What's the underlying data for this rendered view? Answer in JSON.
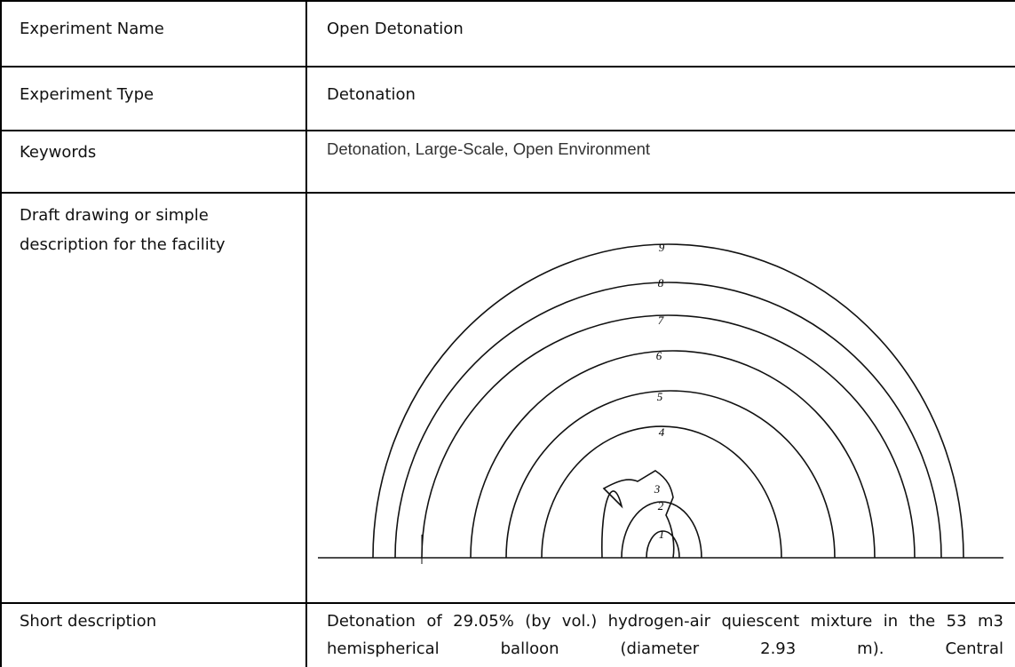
{
  "table": {
    "rows": [
      [
        "Experiment Name",
        "Open Detonation"
      ],
      [
        "Experiment Type",
        "Detonation"
      ],
      [
        "Keywords",
        "Detonation, Large-Scale, Open Environment"
      ],
      [
        "Draft drawing or simple description for the facility"
      ],
      [
        "Short description",
        "Detonation of 29.05% (by vol.) hydrogen-air quiescent mixture in the 53 m3 hemispherical balloon (diameter 2.93 m). Central"
      ]
    ]
  },
  "drawing": {
    "labels": [
      "1",
      "2",
      "3",
      "4",
      "5",
      "6",
      "7",
      "8",
      "9"
    ]
  }
}
